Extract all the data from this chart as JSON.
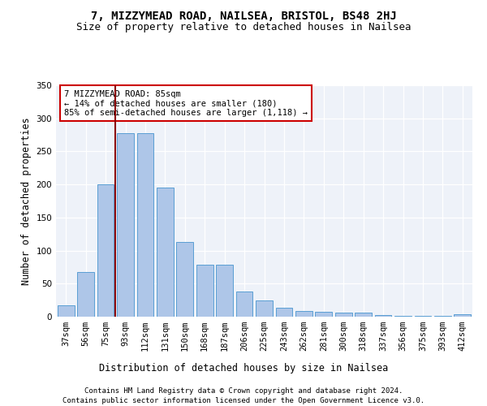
{
  "title1": "7, MIZZYMEAD ROAD, NAILSEA, BRISTOL, BS48 2HJ",
  "title2": "Size of property relative to detached houses in Nailsea",
  "xlabel": "Distribution of detached houses by size in Nailsea",
  "ylabel": "Number of detached properties",
  "categories": [
    "37sqm",
    "56sqm",
    "75sqm",
    "93sqm",
    "112sqm",
    "131sqm",
    "150sqm",
    "168sqm",
    "187sqm",
    "206sqm",
    "225sqm",
    "243sqm",
    "262sqm",
    "281sqm",
    "300sqm",
    "318sqm",
    "337sqm",
    "356sqm",
    "375sqm",
    "393sqm",
    "412sqm"
  ],
  "values": [
    17,
    68,
    200,
    278,
    278,
    195,
    113,
    78,
    78,
    38,
    25,
    14,
    9,
    7,
    6,
    6,
    3,
    1,
    1,
    1,
    4
  ],
  "bar_color": "#aec6e8",
  "bar_edge_color": "#5a9fd4",
  "vline_color": "#8b0000",
  "annotation_text": "7 MIZZYMEAD ROAD: 85sqm\n← 14% of detached houses are smaller (180)\n85% of semi-detached houses are larger (1,118) →",
  "annotation_box_color": "#ffffff",
  "annotation_box_edge": "#cc0000",
  "footer1": "Contains HM Land Registry data © Crown copyright and database right 2024.",
  "footer2": "Contains public sector information licensed under the Open Government Licence v3.0.",
  "bg_color": "#eef2f9",
  "ylim": [
    0,
    350
  ],
  "yticks": [
    0,
    50,
    100,
    150,
    200,
    250,
    300,
    350
  ],
  "title1_fontsize": 10,
  "title2_fontsize": 9,
  "axis_label_fontsize": 8.5,
  "tick_fontsize": 7.5,
  "footer_fontsize": 6.5,
  "annot_fontsize": 7.5
}
